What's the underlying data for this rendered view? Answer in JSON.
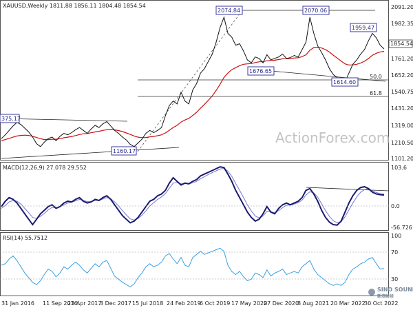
{
  "chart_data": [
    {
      "type": "line",
      "title": "XAUUSD,Weekly",
      "ohlc_text": "1811.88 1856.11 1804.48 1854.54",
      "last_price_label": "1854.54",
      "ylim": [
        1100,
        2150
      ],
      "yticks": [
        2091.2,
        1982.35,
        1870.0,
        1761.2,
        1652.2,
        1540.75,
        1431.2,
        1319.0,
        1210.5,
        1101.2
      ],
      "ytick_labels": [
        "2091.20",
        "1982.35",
        "1870.0",
        "1761.20",
        "1652.20",
        "1540.75",
        "1431.20",
        "1319.00",
        "1210.50",
        "1101.20"
      ],
      "x_labels": [
        "31 Jan 2016",
        "11 Sep 2016",
        "23 Apr 2017",
        "3 Dec 2017",
        "15 Jul 2018",
        "24 Feb 2019",
        "6 Oct 2019",
        "17 May 2020",
        "27 Dec 2020",
        "8 Aug 2021",
        "20 Mar 2022",
        "30 Oct 2022"
      ],
      "series": [
        {
          "values": [
            1245,
            1270,
            1300,
            1330,
            1355,
            1340,
            1315,
            1290,
            1255,
            1210,
            1190,
            1220,
            1245,
            1255,
            1230,
            1260,
            1280,
            1270,
            1285,
            1305,
            1320,
            1300,
            1280,
            1310,
            1335,
            1320,
            1345,
            1360,
            1330,
            1300,
            1280,
            1255,
            1235,
            1205,
            1190,
            1215,
            1240,
            1280,
            1300,
            1285,
            1300,
            1320,
            1400,
            1470,
            1500,
            1480,
            1560,
            1500,
            1480,
            1575,
            1620,
            1690,
            1720,
            1770,
            1820,
            1900,
            2000,
            2070,
            1960,
            1935,
            1880,
            1890,
            1840,
            1780,
            1760,
            1800,
            1790,
            1760,
            1815,
            1780,
            1790,
            1800,
            1820,
            1790,
            1795,
            1810,
            1800,
            1850,
            1900,
            2070,
            1960,
            1875,
            1830,
            1780,
            1720,
            1680,
            1660,
            1640,
            1630,
            1690,
            1750,
            1780,
            1820,
            1850,
            1910,
            1960,
            1930,
            1880,
            1854.54
          ]
        },
        {
          "values": [
            1230,
            1238,
            1246,
            1254,
            1262,
            1266,
            1268,
            1266,
            1260,
            1252,
            1244,
            1238,
            1238,
            1240,
            1240,
            1244,
            1250,
            1254,
            1259,
            1265,
            1272,
            1277,
            1279,
            1284,
            1290,
            1294,
            1300,
            1305,
            1306,
            1304,
            1299,
            1292,
            1283,
            1273,
            1262,
            1254,
            1251,
            1252,
            1256,
            1259,
            1264,
            1270,
            1283,
            1301,
            1320,
            1335,
            1357,
            1371,
            1382,
            1402,
            1424,
            1451,
            1477,
            1505,
            1535,
            1572,
            1614,
            1660,
            1690,
            1713,
            1727,
            1741,
            1750,
            1753,
            1755,
            1762,
            1767,
            1768,
            1774,
            1776,
            1778,
            1782,
            1787,
            1788,
            1789,
            1793,
            1794,
            1802,
            1815,
            1846,
            1864,
            1866,
            1861,
            1850,
            1833,
            1812,
            1792,
            1772,
            1753,
            1745,
            1746,
            1750,
            1759,
            1771,
            1789,
            1811,
            1825,
            1834,
            1838
          ]
        }
      ],
      "annotations": [
        "2074.84",
        "2070.06",
        "1959.47",
        "1676.65",
        "1614.60",
        "375.17",
        "1160.17",
        "50.0",
        "61.8"
      ],
      "watermark": "ActionForex.com"
    },
    {
      "type": "line",
      "title": "MACD(12,26,9) 27.078 29.552",
      "ylim": [
        -70,
        115
      ],
      "yticks": [
        103.6,
        0.0,
        -56.726
      ],
      "ytick_labels": [
        "103.6",
        "0.0",
        "-56.726"
      ],
      "series": [
        {
          "values": [
            -5,
            10,
            20,
            15,
            5,
            -10,
            -25,
            -40,
            -55,
            -40,
            -25,
            -15,
            -5,
            0,
            -10,
            -5,
            5,
            10,
            8,
            15,
            20,
            10,
            5,
            8,
            15,
            12,
            20,
            25,
            15,
            0,
            -15,
            -30,
            -40,
            -50,
            -45,
            -35,
            -20,
            -5,
            10,
            15,
            25,
            30,
            40,
            60,
            75,
            65,
            55,
            60,
            58,
            65,
            70,
            80,
            85,
            90,
            95,
            100,
            105,
            103,
            85,
            65,
            40,
            20,
            0,
            -20,
            -35,
            -45,
            -40,
            -25,
            -5,
            -20,
            -25,
            -10,
            0,
            5,
            0,
            5,
            10,
            20,
            40,
            45,
            30,
            10,
            -15,
            -35,
            -48,
            -55,
            -56,
            -45,
            -20,
            5,
            25,
            40,
            48,
            50,
            45,
            35,
            30,
            28,
            27.078
          ]
        },
        {
          "values": [
            -10,
            -2,
            8,
            12,
            10,
            2,
            -10,
            -22,
            -35,
            -38,
            -32,
            -24,
            -14,
            -7,
            -8,
            -6,
            0,
            5,
            7,
            11,
            15,
            12,
            9,
            9,
            12,
            12,
            16,
            20,
            17,
            8,
            -3,
            -16,
            -28,
            -39,
            -42,
            -38,
            -29,
            -17,
            -3,
            6,
            15,
            22,
            31,
            46,
            60,
            62,
            58,
            59,
            58,
            61,
            65,
            72,
            78,
            84,
            89,
            94,
            99,
            101,
            93,
            79,
            59,
            40,
            20,
            0,
            -17,
            -31,
            -36,
            -31,
            -18,
            -19,
            -22,
            -16,
            -8,
            -1,
            -1,
            2,
            6,
            13,
            27,
            36,
            33,
            21,
            3,
            -16,
            -32,
            -44,
            -50,
            -47,
            -33,
            -14,
            5,
            22,
            35,
            42,
            44,
            39,
            34,
            31,
            29.552
          ]
        }
      ]
    },
    {
      "type": "line",
      "title": "RSI(14) 55.7512",
      "ylim": [
        20,
        100
      ],
      "yticks": [
        100,
        70,
        30
      ],
      "ytick_labels": [
        "100",
        "70",
        "30"
      ],
      "series": [
        {
          "values": [
            60,
            62,
            68,
            72,
            66,
            58,
            50,
            44,
            38,
            35,
            40,
            48,
            55,
            52,
            45,
            50,
            58,
            55,
            60,
            64,
            60,
            54,
            50,
            56,
            62,
            58,
            64,
            66,
            56,
            46,
            42,
            38,
            35,
            32,
            36,
            44,
            50,
            58,
            62,
            58,
            60,
            64,
            72,
            75,
            68,
            62,
            70,
            60,
            58,
            70,
            74,
            78,
            74,
            76,
            78,
            80,
            82,
            78,
            60,
            52,
            48,
            52,
            45,
            40,
            42,
            50,
            48,
            44,
            54,
            46,
            50,
            52,
            55,
            48,
            50,
            52,
            50,
            58,
            62,
            66,
            55,
            48,
            44,
            40,
            36,
            34,
            36,
            34,
            38,
            48,
            55,
            58,
            62,
            64,
            68,
            70,
            62,
            55,
            55.7512
          ]
        }
      ]
    }
  ]
}
